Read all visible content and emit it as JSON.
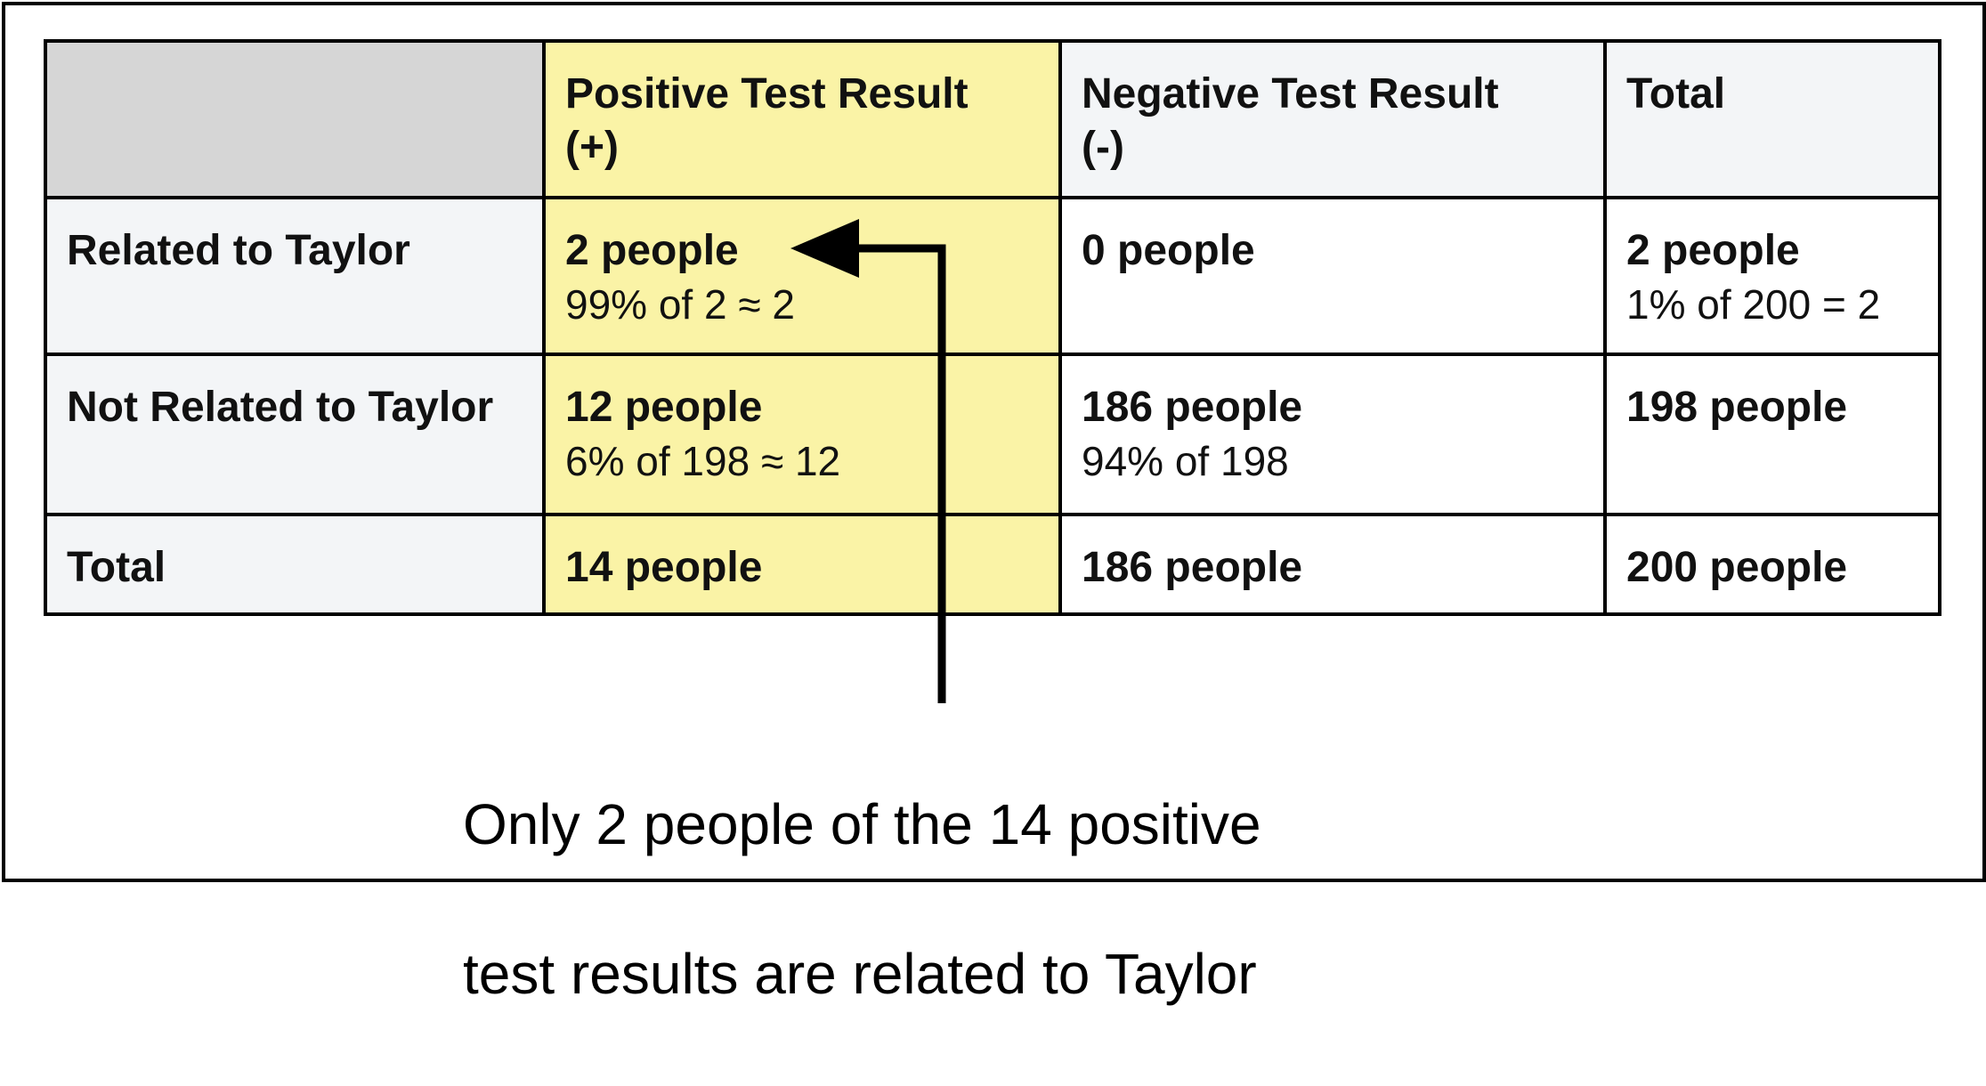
{
  "table": {
    "columns": [
      "",
      "Positive Test Result\n(+)",
      "Negative Test Result\n(-)",
      "Total"
    ],
    "col_header": {
      "positive_line1": "Positive Test Result",
      "positive_line2": "(+)",
      "negative_line1": "Negative Test Result",
      "negative_line2": "(-)",
      "total": "Total"
    },
    "rows": [
      {
        "label": "Related to Taylor",
        "positive": {
          "count": "2 people",
          "calc": "99% of 2 ≈ 2"
        },
        "negative": {
          "count": "0 people",
          "calc": ""
        },
        "total": {
          "count": "2 people",
          "calc": "1% of 200 = 2"
        }
      },
      {
        "label": "Not Related to Taylor",
        "positive": {
          "count": "12 people",
          "calc": "6% of 198 ≈ 12"
        },
        "negative": {
          "count": "186 people",
          "calc": "94% of 198"
        },
        "total": {
          "count": "198 people",
          "calc": ""
        }
      },
      {
        "label": "Total",
        "positive": {
          "count": "14 people",
          "calc": ""
        },
        "negative": {
          "count": "186 people",
          "calc": ""
        },
        "total": {
          "count": "200 people",
          "calc": ""
        }
      }
    ]
  },
  "annotation": {
    "line1": "Only 2 people of the 14 positive",
    "line2": "test results are related to Taylor"
  },
  "colors": {
    "highlight_column": "#faf3a6",
    "header_background": "#f3f5f7",
    "corner_background": "#d6d6d6",
    "border": "#000000"
  }
}
